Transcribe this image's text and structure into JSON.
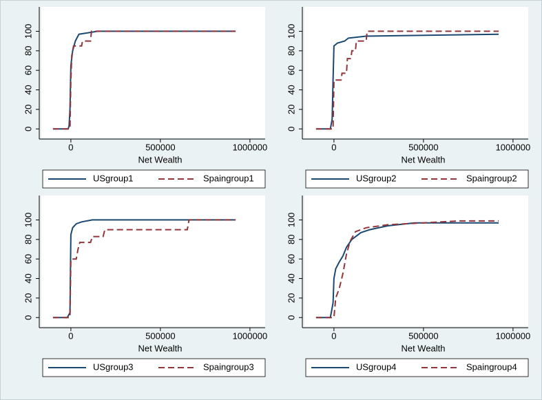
{
  "chart_data": [
    {
      "type": "line",
      "xlabel": "Net Wealth",
      "xlim": [
        -165000,
        1085000
      ],
      "ylim": [
        -9,
        125
      ],
      "xticks": [
        0,
        500000,
        1000000
      ],
      "yticks": [
        0,
        20,
        40,
        60,
        80,
        100
      ],
      "series": [
        {
          "name": "USgroup1",
          "color": "#1a476f",
          "dash": false,
          "x": [
            -100000,
            -15000,
            -10000,
            -5000,
            0,
            10000,
            25000,
            45000,
            150000,
            920000
          ],
          "values": [
            0,
            0,
            3,
            20,
            65,
            80,
            90,
            97,
            100,
            100
          ]
        },
        {
          "name": "Spaingroup1",
          "color": "#90353b",
          "dash": true,
          "x": [
            -100000,
            -5000,
            0,
            5000,
            15000,
            60000,
            65000,
            110000,
            115000,
            920000
          ],
          "values": [
            0,
            0,
            50,
            75,
            85,
            85,
            90,
            90,
            100,
            100
          ]
        }
      ]
    },
    {
      "type": "line",
      "xlabel": "Net Wealth",
      "xlim": [
        -165000,
        1085000
      ],
      "ylim": [
        -9,
        125
      ],
      "xticks": [
        0,
        500000,
        1000000
      ],
      "yticks": [
        0,
        20,
        40,
        60,
        80,
        100
      ],
      "series": [
        {
          "name": "USgroup2",
          "color": "#1a476f",
          "dash": false,
          "x": [
            -100000,
            -20000,
            -10000,
            -5000,
            0,
            20000,
            60000,
            80000,
            180000,
            920000
          ],
          "values": [
            0,
            0,
            10,
            50,
            85,
            88,
            90,
            93,
            95,
            97
          ]
        },
        {
          "name": "Spaingroup2",
          "color": "#90353b",
          "dash": true,
          "x": [
            -100000,
            -5000,
            0,
            40000,
            45000,
            70000,
            75000,
            95000,
            100000,
            120000,
            125000,
            180000,
            185000,
            920000
          ],
          "values": [
            0,
            0,
            50,
            50,
            57,
            57,
            72,
            72,
            80,
            80,
            90,
            90,
            100,
            100
          ]
        }
      ]
    },
    {
      "type": "line",
      "xlabel": "Net Wealth",
      "xlim": [
        -165000,
        1085000
      ],
      "ylim": [
        -9,
        125
      ],
      "xticks": [
        0,
        500000,
        1000000
      ],
      "yticks": [
        0,
        20,
        40,
        60,
        80,
        100
      ],
      "series": [
        {
          "name": "USgroup3",
          "color": "#1a476f",
          "dash": false,
          "x": [
            -100000,
            -20000,
            -5000,
            0,
            10000,
            30000,
            60000,
            120000,
            920000
          ],
          "values": [
            0,
            0,
            5,
            85,
            92,
            96,
            98,
            100,
            100
          ]
        },
        {
          "name": "Spaingroup3",
          "color": "#90353b",
          "dash": true,
          "x": [
            -100000,
            -5000,
            0,
            30000,
            40000,
            50000,
            110000,
            120000,
            180000,
            190000,
            650000,
            660000,
            920000
          ],
          "values": [
            0,
            0,
            60,
            60,
            70,
            77,
            77,
            83,
            83,
            90,
            90,
            100,
            100
          ]
        }
      ]
    },
    {
      "type": "line",
      "xlabel": "Net Wealth",
      "xlim": [
        -165000,
        1085000
      ],
      "ylim": [
        -9,
        125
      ],
      "xticks": [
        0,
        500000,
        1000000
      ],
      "yticks": [
        0,
        20,
        40,
        60,
        80,
        100
      ],
      "series": [
        {
          "name": "USgroup4",
          "color": "#1a476f",
          "dash": false,
          "x": [
            -100000,
            -20000,
            -5000,
            0,
            10000,
            30000,
            50000,
            70000,
            100000,
            150000,
            200000,
            300000,
            450000,
            920000
          ],
          "values": [
            0,
            0,
            15,
            40,
            50,
            57,
            63,
            72,
            80,
            87,
            90,
            94,
            97,
            97
          ]
        },
        {
          "name": "Spaingroup4",
          "color": "#90353b",
          "dash": true,
          "x": [
            -100000,
            0,
            10000,
            30000,
            50000,
            70000,
            90000,
            120000,
            180000,
            300000,
            500000,
            700000,
            920000
          ],
          "values": [
            0,
            0,
            20,
            30,
            45,
            65,
            78,
            88,
            92,
            95,
            97,
            99,
            99
          ]
        }
      ]
    }
  ]
}
